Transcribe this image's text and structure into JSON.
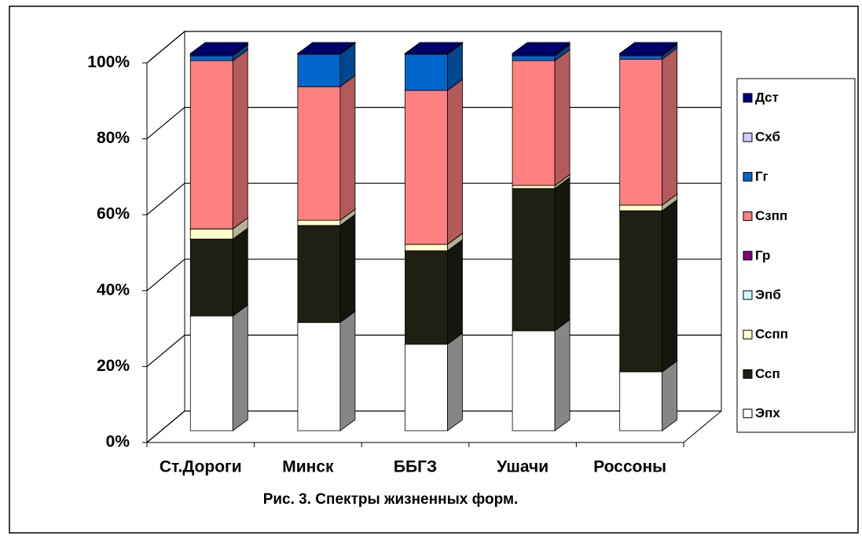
{
  "chart_data": {
    "type": "bar3d_stacked",
    "title": "Рис. 3. Спектры жизненных форм.",
    "categories": [
      "Ст.Дороги",
      "Минск",
      "ББГЗ",
      "Ушачи",
      "Россоны"
    ],
    "series": [
      {
        "name": "Эпх",
        "color": "#ffffff",
        "values": [
          30.4,
          28.7,
          22.9,
          26.5,
          15.6
        ]
      },
      {
        "name": "Ссп",
        "color": "#1f1f14",
        "values": [
          20.4,
          25.7,
          24.8,
          37.7,
          42.7
        ]
      },
      {
        "name": "Сспп",
        "color": "#ffffcc",
        "values": [
          2.7,
          1.4,
          1.7,
          0.8,
          1.5
        ]
      },
      {
        "name": "Эпб",
        "color": "#ccffff",
        "values": [
          0,
          0,
          0,
          0,
          0
        ]
      },
      {
        "name": "Гр",
        "color": "#800080",
        "values": [
          0,
          0,
          0,
          0,
          0
        ]
      },
      {
        "name": "Сзпп",
        "color": "#ff8080",
        "values": [
          44.6,
          35.4,
          40.8,
          33.1,
          38.7
        ]
      },
      {
        "name": "Гг",
        "color": "#0066cc",
        "values": [
          1.3,
          8.6,
          9.6,
          1.3,
          0.9
        ]
      },
      {
        "name": "Схб",
        "color": "#ccccff",
        "values": [
          0,
          0,
          0,
          0,
          0
        ]
      },
      {
        "name": "Дст",
        "color": "#000080",
        "values": [
          0.6,
          0.2,
          0.2,
          0.6,
          0.6
        ]
      }
    ],
    "ylim": [
      0,
      100
    ],
    "yticks": [
      {
        "value": 0,
        "label": "0%"
      },
      {
        "value": 20,
        "label": "20%"
      },
      {
        "value": 40,
        "label": "40%"
      },
      {
        "value": 60,
        "label": "60%"
      },
      {
        "value": 80,
        "label": "80%"
      },
      {
        "value": 100,
        "label": "100%"
      }
    ],
    "grid": true,
    "legend": "right"
  }
}
